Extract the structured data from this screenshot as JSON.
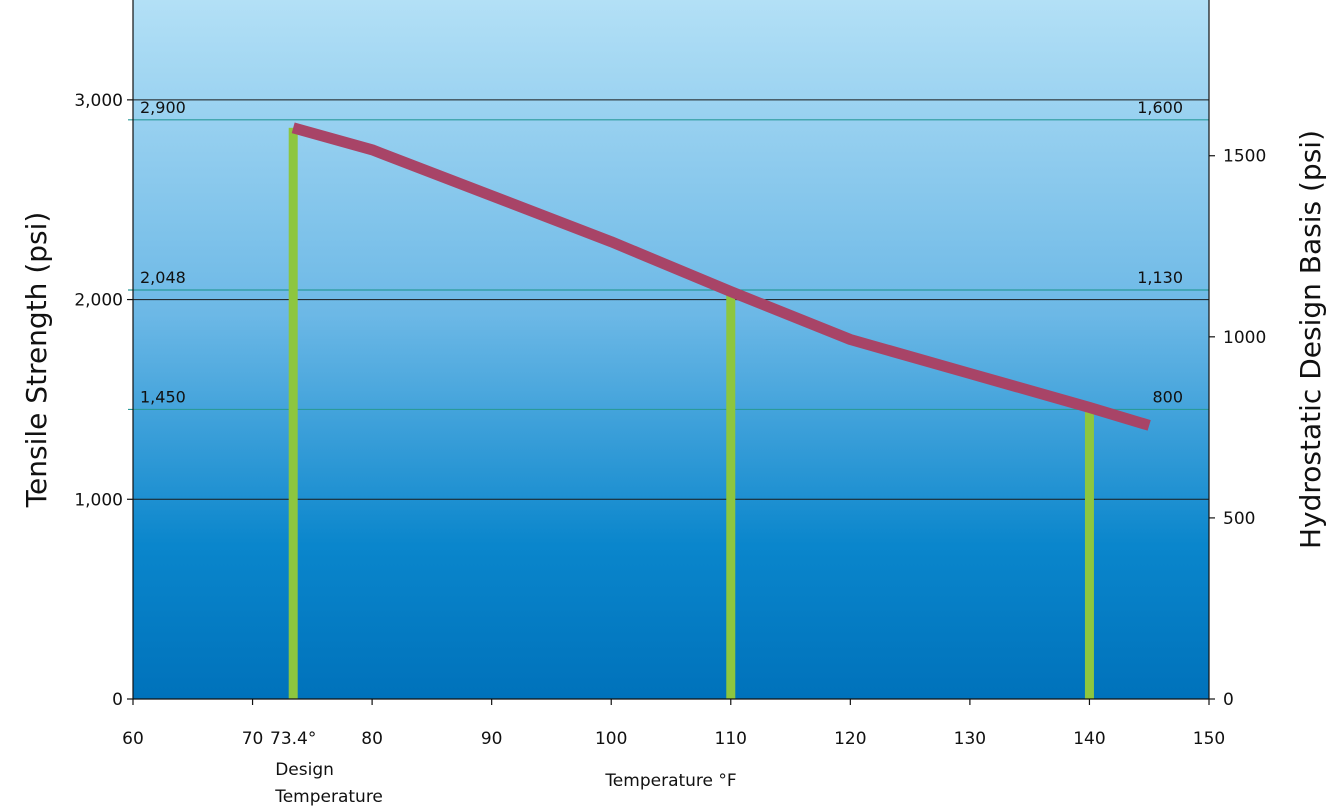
{
  "chart_data": {
    "type": "line",
    "title": "",
    "xlabel": "Temperature °F",
    "ylabel": "Tensile Strength (psi)",
    "y2label": "Hydrostatic Design Basis (psi)",
    "xlim": [
      60,
      150
    ],
    "ylim": [
      0,
      3500
    ],
    "y2lim": [
      0,
      1930
    ],
    "x_ticks": [
      "60",
      "70",
      "80",
      "90",
      "100",
      "110",
      "120",
      "130",
      "140",
      "150"
    ],
    "x_tick_values": [
      60,
      70,
      80,
      90,
      100,
      110,
      120,
      130,
      140,
      150
    ],
    "y_ticks": [
      "0",
      "1,000",
      "2,000",
      "3,000"
    ],
    "y_tick_values": [
      0,
      1000,
      2000,
      3000
    ],
    "y2_ticks": [
      "0",
      "500",
      "1000",
      "1500"
    ],
    "y2_tick_values": [
      0,
      500,
      1000,
      1500
    ],
    "grid": "horizontal",
    "series": [
      {
        "x": [
          73.4,
          80,
          90,
          100,
          110,
          120,
          130,
          140,
          145
        ],
        "y": [
          2860,
          2750,
          2520,
          2290,
          2040,
          1800,
          1630,
          1460,
          1370
        ],
        "color": "#a84467"
      }
    ],
    "reference_lines": [
      {
        "y": 2900,
        "left_label": "2,900",
        "right_label": "1,600"
      },
      {
        "y": 2048,
        "left_label": "2,048",
        "right_label": "1,130"
      },
      {
        "y": 1450,
        "left_label": "1,450",
        "right_label": "800"
      }
    ],
    "vertical_bars": [
      {
        "x": 73.4,
        "y": 2860,
        "label": "73.4°",
        "note": [
          "Design",
          "Temperature"
        ]
      },
      {
        "x": 110,
        "y": 2040
      },
      {
        "x": 140,
        "y": 1450
      }
    ],
    "colors": {
      "background_top": "#b3e0f6",
      "background_bottom": "#0072bb",
      "line": "#a84467",
      "bars": "#8dc63f",
      "reference_lines": "#2a9a9a"
    }
  }
}
